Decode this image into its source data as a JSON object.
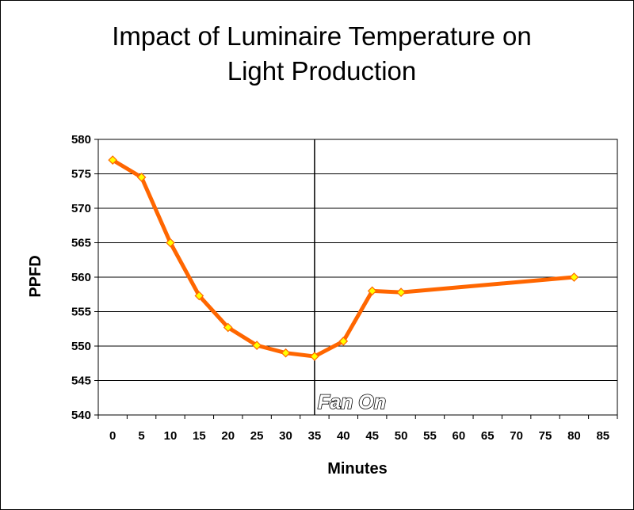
{
  "chart_data": {
    "type": "line",
    "title": [
      "Impact of Luminaire Temperature on",
      "Light Production"
    ],
    "xlabel": "Minutes",
    "ylabel": "PPFD",
    "x_ticks": [
      0,
      5,
      10,
      15,
      20,
      25,
      30,
      35,
      40,
      45,
      50,
      55,
      60,
      65,
      70,
      75,
      80,
      85
    ],
    "y_ticks": [
      540,
      545,
      550,
      555,
      560,
      565,
      570,
      575,
      580
    ],
    "xlim": [
      -2.5,
      87.5
    ],
    "ylim": [
      540,
      580
    ],
    "grid": "horizontal",
    "colors": {
      "line": "#ff6600",
      "marker_fill": "#ffff00",
      "marker_stroke": "#ff6600"
    },
    "series": [
      {
        "x": [
          0,
          5,
          10,
          15,
          20,
          25,
          30,
          35,
          40,
          45,
          50,
          80
        ],
        "values": [
          577.0,
          574.5,
          565.0,
          557.3,
          552.7,
          550.1,
          549.0,
          548.5,
          550.7,
          558.0,
          557.8,
          560.0
        ]
      }
    ],
    "annotation": {
      "text": "Fan On",
      "x": 35
    }
  }
}
